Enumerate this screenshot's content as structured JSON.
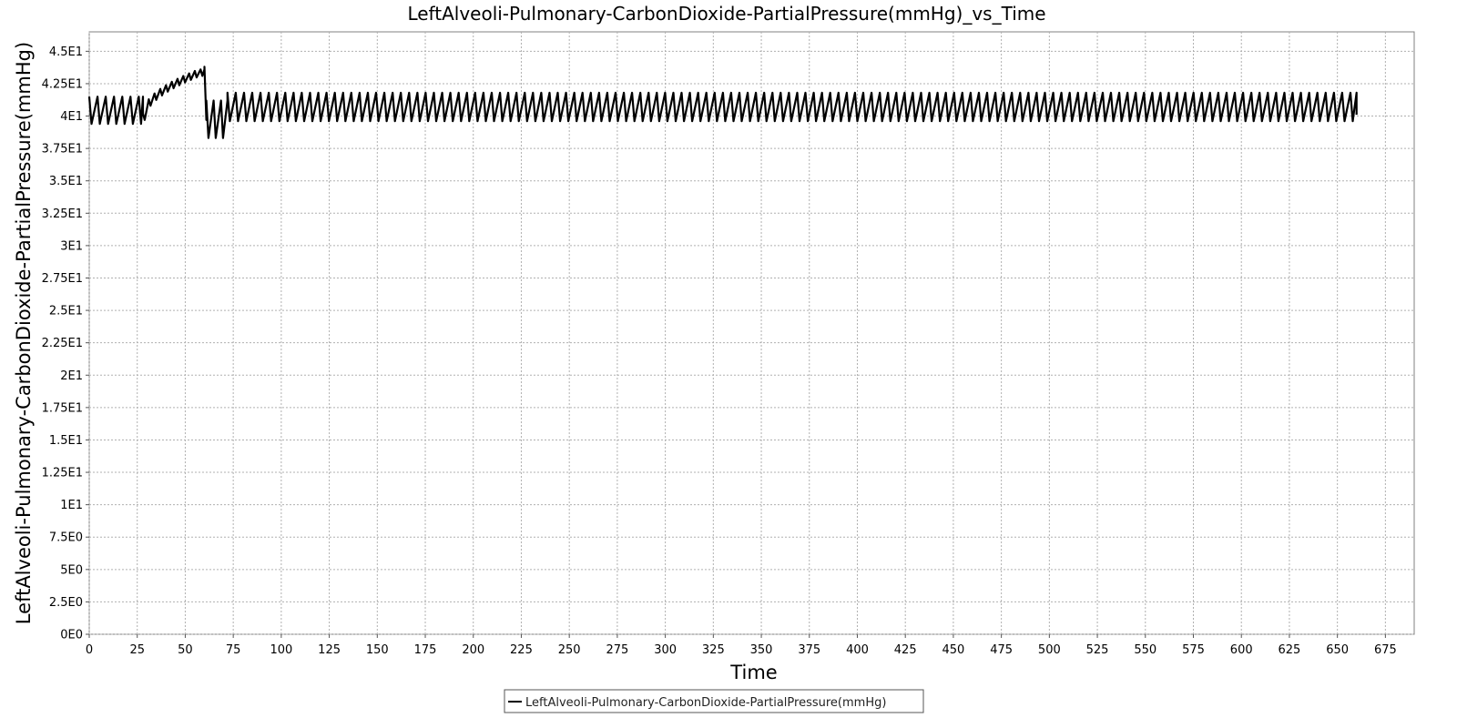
{
  "chart_data": {
    "type": "line",
    "title": "LeftAlveoli-Pulmonary-CarbonDioxide-PartialPressure(mmHg)_vs_Time",
    "xlabel": "Time",
    "ylabel": "LeftAlveoli-Pulmonary-CarbonDioxide-PartialPressure(mmHg)",
    "xlim": [
      0,
      690
    ],
    "ylim": [
      0,
      46.5
    ],
    "x_ticks": [
      "0",
      "25",
      "50",
      "75",
      "100",
      "125",
      "150",
      "175",
      "200",
      "225",
      "250",
      "275",
      "300",
      "325",
      "350",
      "375",
      "400",
      "425",
      "450",
      "475",
      "500",
      "525",
      "550",
      "575",
      "600",
      "625",
      "650",
      "675"
    ],
    "y_ticks": [
      "0E0",
      "2.5E0",
      "5E0",
      "7.5E0",
      "1E1",
      "1.25E1",
      "1.5E1",
      "1.75E1",
      "2E1",
      "2.25E1",
      "2.5E1",
      "2.75E1",
      "3E1",
      "3.25E1",
      "3.5E1",
      "3.75E1",
      "4E1",
      "4.25E1",
      "4.5E1"
    ],
    "grid": true,
    "legend_position": "bottom-center",
    "colors": {
      "series": "#000000",
      "grid": "#b0b0b0",
      "frame": "#808080"
    },
    "series": [
      {
        "name": "LeftAlveoli-Pulmonary-CarbonDioxide-PartialPressure(mmHg)",
        "x_range": [
          0,
          660
        ],
        "phases": [
          {
            "from": 0,
            "to": 28,
            "low": 39.4,
            "high": 41.5,
            "period": 4.3
          },
          {
            "from": 28,
            "to": 60,
            "ramp_start": 40.2,
            "ramp_end": 43.6,
            "ripple": 0.5,
            "period": 3.0
          },
          {
            "from": 60,
            "to": 61,
            "drop_to": 39.7
          },
          {
            "from": 61,
            "to": 72,
            "low": 38.3,
            "high": 41.2,
            "period": 3.8
          },
          {
            "from": 72,
            "to": 660,
            "low": 39.6,
            "high": 41.8,
            "period": 4.3
          }
        ]
      }
    ]
  }
}
